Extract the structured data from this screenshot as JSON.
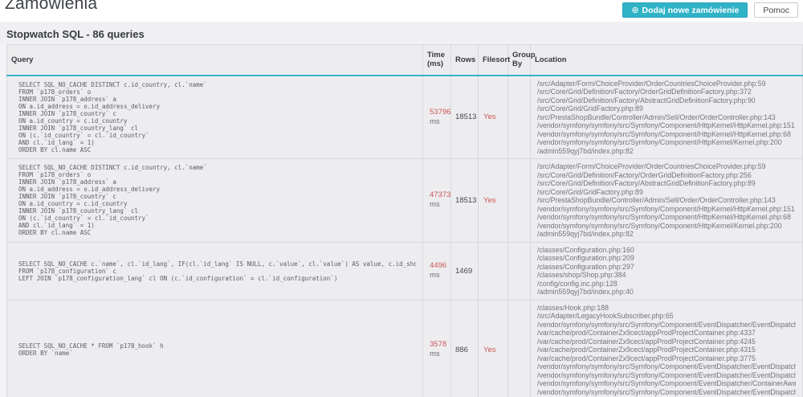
{
  "page": {
    "title": "Zamówienia",
    "add_button_label": "Dodaj nowe zamówienie",
    "add_icon_glyph": "⊕",
    "help_button_label": "Pomoc"
  },
  "panel": {
    "title": "Stopwatch SQL - 86 queries"
  },
  "colors": {
    "accent": "#30b2c7",
    "danger": "#cb5757"
  },
  "table": {
    "headers": {
      "query": "Query",
      "time": "Time (ms)",
      "rows": "Rows",
      "filesort": "Filesort",
      "groupby": "Group By",
      "location": "Location"
    },
    "ms_label": "ms",
    "rows": [
      {
        "query": "SELECT SQL_NO_CACHE DISTINCT c.id_country, cl.`name`\nFROM `p178_orders` o\nINNER JOIN `p178_address` a\nON a.id_address = o.id_address_delivery\nINNER JOIN `p178_country` c\nON a.id_country = c.id_country\nINNER JOIN `p178_country_lang` cl\nON (c.`id_country` = cl.`id_country`\nAND cl.`id_lang` = 1)\nORDER BY cl.name ASC",
        "time": "53796",
        "rows": "18513",
        "filesort": "Yes",
        "groupby": "",
        "locations": [
          "/src/Adapter/Form/ChoiceProvider/OrderCountriesChoiceProvider.php:59",
          "/src/Core/Grid/Definition/Factory/OrderGridDefinitionFactory.php:372",
          "/src/Core/Grid/Definition/Factory/AbstractGridDefinitionFactory.php:90",
          "/src/Core/Grid/GridFactory.php:89",
          "/src/PrestaShopBundle/Controller/Admin/Sell/Order/OrderController.php:143",
          "/vendor/symfony/symfony/src/Symfony/Component/HttpKernel/HttpKernel.php:151",
          "/vendor/symfony/symfony/src/Symfony/Component/HttpKernel/HttpKernel.php:68",
          "/vendor/symfony/symfony/src/Symfony/Component/HttpKernel/Kernel.php:200",
          "/admin559qyj7bd/index.php:82"
        ]
      },
      {
        "query": "SELECT SQL_NO_CACHE DISTINCT c.id_country, cl.`name`\nFROM `p178_orders` o\nINNER JOIN `p178_address` a\nON a.id_address = o.id_address_delivery\nINNER JOIN `p178_country` c\nON a.id_country = c.id_country\nINNER JOIN `p178_country_lang` cl\nON (c.`id_country` = cl.`id_country`\nAND cl.`id_lang` = 1)\nORDER BY cl.name ASC",
        "time": "47373",
        "rows": "18513",
        "filesort": "Yes",
        "groupby": "",
        "locations": [
          "/src/Adapter/Form/ChoiceProvider/OrderCountriesChoiceProvider.php:59",
          "/src/Core/Grid/Definition/Factory/OrderGridDefinitionFactory.php:256",
          "/src/Core/Grid/Definition/Factory/AbstractGridDefinitionFactory.php:89",
          "/src/Core/Grid/GridFactory.php:89",
          "/src/PrestaShopBundle/Controller/Admin/Sell/Order/OrderController.php:143",
          "/vendor/symfony/symfony/src/Symfony/Component/HttpKernel/HttpKernel.php:151",
          "/vendor/symfony/symfony/src/Symfony/Component/HttpKernel/HttpKernel.php:68",
          "/vendor/symfony/symfony/src/Symfony/Component/HttpKernel/Kernel.php:200",
          "/admin559qyj7bd/index.php:82"
        ]
      },
      {
        "query": "SELECT SQL_NO_CACHE c.`name`, cl.`id_lang`, IF(cl.`id_lang` IS NULL, c.`value`, cl.`value`) AS value, c.id_shop_group, c.id_shop\nFROM `p178_configuration` c\nLEFT JOIN `p178_configuration_lang` cl ON (c.`id_configuration` = cl.`id_configuration`)",
        "time": "4496",
        "rows": "1469",
        "filesort": "",
        "groupby": "",
        "locations": [
          "/classes/Configuration.php:160",
          "/classes/Configuration.php:209",
          "/classes/Configuration.php:297",
          "/classes/shop/Shop.php:384",
          "/config/config.inc.php:128",
          "/admin559qyj7bd/index.php:40"
        ]
      },
      {
        "query": "SELECT SQL_NO_CACHE * FROM `p178_hook` h\nORDER BY `name`",
        "time": "3578",
        "rows": "886",
        "filesort": "Yes",
        "groupby": "",
        "locations": [
          "/classes/Hook.php:188",
          "/src/Adapter/LegacyHookSubscriber.php:65",
          "/vendor/symfony/symfony/src/Symfony/Component/EventDispatcher/EventDispatcher.php",
          "/var/cache/prod/ContainerZx9cect/appProdProjectContainer.php:4337",
          "/var/cache/prod/ContainerZx9cect/appProdProjectContainer.php:4245",
          "/var/cache/prod/ContainerZx9cect/appProdProjectContainer.php:4315",
          "/var/cache/prod/ContainerZx9cect/appProdProjectContainer.php:3775",
          "/vendor/symfony/symfony/src/Symfony/Component/EventDispatcher/EventDispatcher.php",
          "/vendor/symfony/symfony/src/Symfony/Component/EventDispatcher/EventDispatcher.php",
          "/vendor/symfony/symfony/src/Symfony/Component/EventDispatcher/ContainerAwareEventDispatcher.php",
          "/vendor/symfony/symfony/src/Symfony/Component/EventDispatcher/EventDispatcher.php"
        ]
      }
    ]
  }
}
